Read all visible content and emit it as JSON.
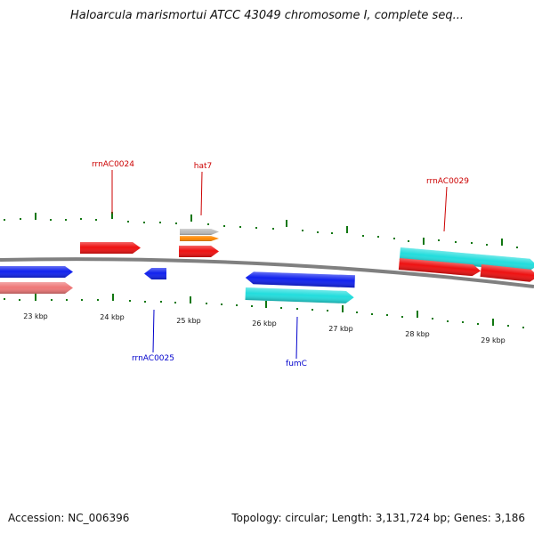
{
  "title": "Haloarcula marismortui ATCC 43049 chromosome I, complete seq...",
  "footer": {
    "accession": "Accession: NC_006396",
    "summary": "Topology: circular; Length: 3,131,724 bp; Genes: 3,186"
  },
  "colors": {
    "backbone": "#808080",
    "tick": "#117711",
    "label_plus": "#cc0000",
    "label_minus": "#0000cc",
    "red": "#ee1111",
    "blue": "#1122ee",
    "pink": "#ee7777",
    "cyan": "#22dddd",
    "orange": "#ff8800",
    "gray": "#bbbbbb"
  },
  "scale_labels": [
    "23 kbp",
    "24 kbp",
    "25 kbp",
    "26 kbp",
    "27 kbp",
    "28 kbp",
    "29 kbp"
  ],
  "gene_labels": [
    {
      "text": "rrnAC0024",
      "strand": "plus"
    },
    {
      "text": "hat7",
      "strand": "plus"
    },
    {
      "text": "rrnAC0029",
      "strand": "plus"
    },
    {
      "text": "rrnAC0025",
      "strand": "minus"
    },
    {
      "text": "fumC",
      "strand": "minus"
    }
  ],
  "features": [
    {
      "color": "red",
      "direction": "right"
    },
    {
      "color": "gray",
      "direction": "right"
    },
    {
      "color": "orange",
      "direction": "right"
    },
    {
      "color": "red",
      "direction": "right"
    },
    {
      "color": "cyan",
      "direction": "right"
    },
    {
      "color": "red",
      "direction": "right"
    },
    {
      "color": "red",
      "direction": "right"
    },
    {
      "color": "blue",
      "direction": "right"
    },
    {
      "color": "pink",
      "direction": "right"
    },
    {
      "color": "blue",
      "direction": "left"
    },
    {
      "color": "blue",
      "direction": "left"
    },
    {
      "color": "cyan",
      "direction": "right"
    }
  ]
}
